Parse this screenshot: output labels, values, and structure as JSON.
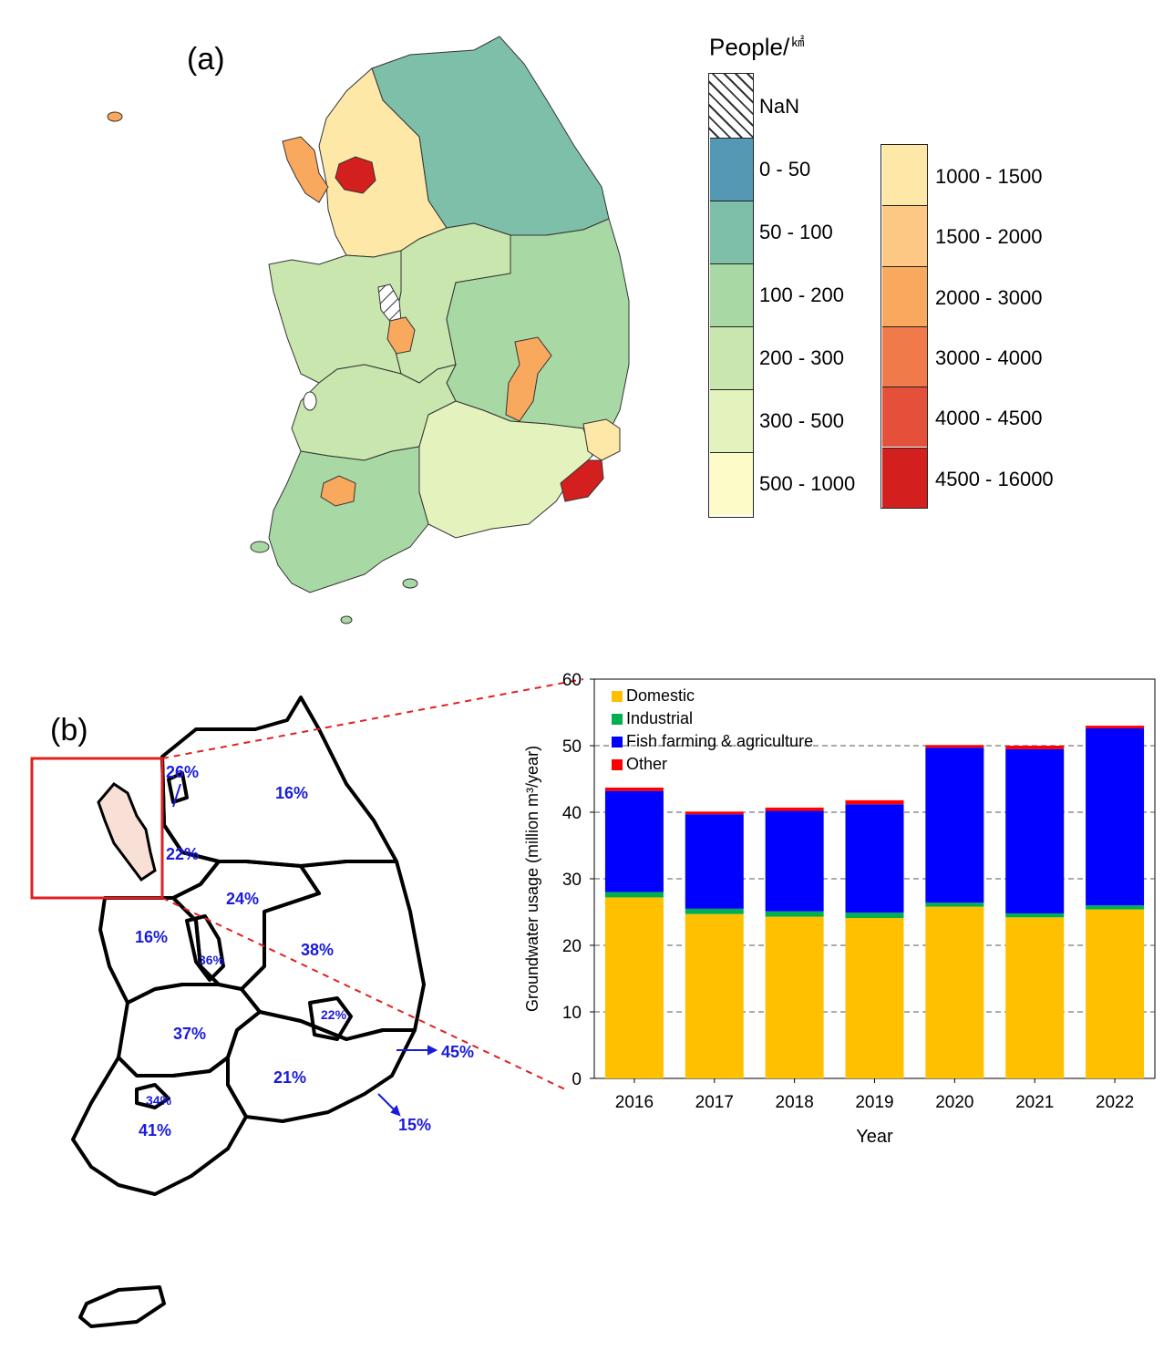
{
  "panel_a": {
    "label": "(a)",
    "legend": {
      "title": "People/",
      "unit": "㎢",
      "nan_label": "NaN",
      "classes_left": [
        {
          "label": "0 - 50",
          "color": "#5598b3"
        },
        {
          "label": "50 - 100",
          "color": "#7dbfa9"
        },
        {
          "label": "100 - 200",
          "color": "#a8d8a4"
        },
        {
          "label": "200 - 300",
          "color": "#c8e6ad"
        },
        {
          "label": "300 - 500",
          "color": "#e4f2bd"
        },
        {
          "label": "500 - 1000",
          "color": "#fdfcc8"
        }
      ],
      "classes_right": [
        {
          "label": "1000 - 1500",
          "color": "#fde8a8"
        },
        {
          "label": "1500 - 2000",
          "color": "#fcc883"
        },
        {
          "label": "2000 - 3000",
          "color": "#f9a95e"
        },
        {
          "label": "3000 - 4000",
          "color": "#f07a4a"
        },
        {
          "label": "4000 - 4500",
          "color": "#e5503a"
        },
        {
          "label": "4500 - 16000",
          "color": "#d41f1f"
        }
      ]
    }
  },
  "panel_b": {
    "label": "(b)",
    "region_percentages": [
      "26%",
      "16%",
      "22%",
      "24%",
      "16%",
      "36%",
      "38%",
      "22%",
      "37%",
      "45%",
      "21%",
      "34%",
      "41%",
      "15%"
    ]
  },
  "chart_data": {
    "type": "bar",
    "stacked": true,
    "categories": [
      "2016",
      "2017",
      "2018",
      "2019",
      "2020",
      "2021",
      "2022"
    ],
    "series": [
      {
        "name": "Domestic",
        "color": "#ffc000",
        "values": [
          27.2,
          24.7,
          24.3,
          24.1,
          25.8,
          24.2,
          25.4
        ]
      },
      {
        "name": "Industrial",
        "color": "#00b050",
        "values": [
          0.8,
          0.8,
          0.8,
          0.8,
          0.6,
          0.6,
          0.6
        ]
      },
      {
        "name": "Fish farming & agriculture",
        "color": "#0000ff",
        "values": [
          15.2,
          14.2,
          15.1,
          16.3,
          23.3,
          24.7,
          26.6
        ]
      },
      {
        "name": "Other",
        "color": "#ff0000",
        "values": [
          0.5,
          0.4,
          0.5,
          0.6,
          0.4,
          0.5,
          0.4
        ]
      }
    ],
    "xlabel": "Year",
    "ylabel": "Groundwater usage (million m³/year)",
    "ylim": [
      0,
      60
    ],
    "yticks": [
      "0",
      "10",
      "20",
      "30",
      "40",
      "50",
      "60"
    ],
    "grid": "dashed horizontal at 10, 20, 30, 40, 50",
    "legend_position": "top-left"
  }
}
